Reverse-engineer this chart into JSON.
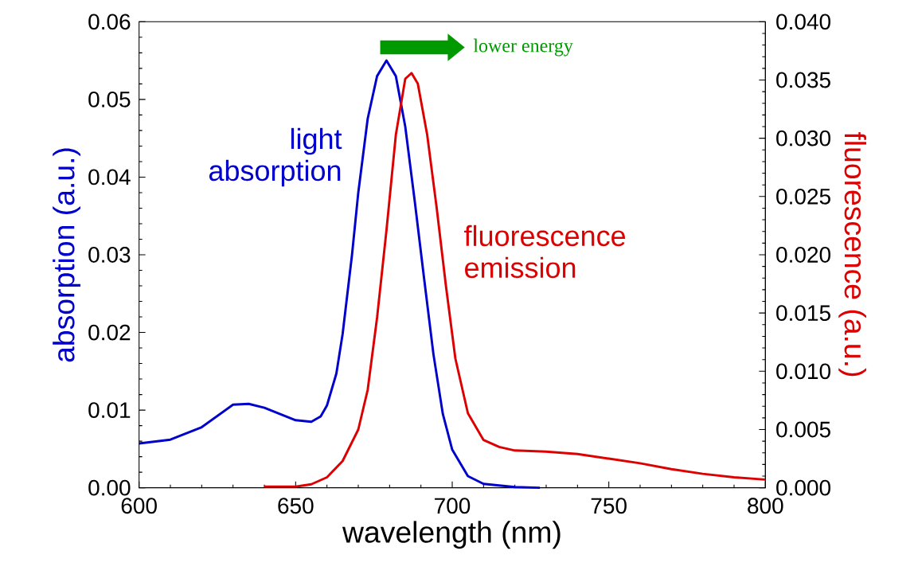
{
  "chart_data": {
    "type": "line",
    "xlabel": "wavelength (nm)",
    "ylabel": "absorption (a.u.)",
    "y2label": "fluorescence (a.u.)",
    "xlim": [
      600,
      800
    ],
    "xticks": [
      600,
      650,
      700,
      750,
      800
    ],
    "ylim": [
      0,
      0.06
    ],
    "yticks": [
      {
        "value": 0,
        "label": "0.00"
      },
      {
        "value": 0.01,
        "label": "0.01"
      },
      {
        "value": 0.02,
        "label": "0.02"
      },
      {
        "value": 0.03,
        "label": "0.03"
      },
      {
        "value": 0.04,
        "label": "0.04"
      },
      {
        "value": 0.05,
        "label": "0.05"
      },
      {
        "value": 0.06,
        "label": "0.06"
      }
    ],
    "y2lim": [
      0,
      0.04
    ],
    "y2ticks": [
      {
        "value": 0,
        "label": "0.000"
      },
      {
        "value": 0.005,
        "label": "0.005"
      },
      {
        "value": 0.01,
        "label": "0.010"
      },
      {
        "value": 0.015,
        "label": "0.015"
      },
      {
        "value": 0.02,
        "label": "0.020"
      },
      {
        "value": 0.025,
        "label": "0.025"
      },
      {
        "value": 0.03,
        "label": "0.030"
      },
      {
        "value": 0.035,
        "label": "0.035"
      },
      {
        "value": 0.04,
        "label": "0.040"
      }
    ],
    "series": [
      {
        "name": "light absorption",
        "color": "#0000cc",
        "axis": "y",
        "x": [
          600,
          610,
          620,
          630,
          635,
          640,
          645,
          650,
          655,
          658,
          660,
          663,
          665,
          668,
          670,
          673,
          676,
          679,
          682,
          685,
          688,
          691,
          694,
          697,
          700,
          705,
          710,
          720,
          728
        ],
        "values": [
          0.0057,
          0.0062,
          0.0078,
          0.0107,
          0.0108,
          0.0103,
          0.0095,
          0.0087,
          0.0085,
          0.0092,
          0.0106,
          0.0147,
          0.0198,
          0.03,
          0.038,
          0.0475,
          0.053,
          0.055,
          0.053,
          0.0465,
          0.037,
          0.027,
          0.0172,
          0.0095,
          0.0049,
          0.0015,
          0.0005,
          0.0001,
          0
        ]
      },
      {
        "name": "fluorescence emission",
        "color": "#dd0000",
        "axis": "y2",
        "x": [
          640,
          650,
          655,
          660,
          665,
          670,
          673,
          676,
          679,
          682,
          685,
          687,
          689,
          692,
          695,
          698,
          701,
          705,
          710,
          715,
          720,
          730,
          740,
          750,
          760,
          770,
          780,
          790,
          800
        ],
        "values": [
          0.0001,
          0.0001,
          0.0003,
          0.0009,
          0.0023,
          0.005,
          0.0084,
          0.0146,
          0.0221,
          0.0303,
          0.0351,
          0.0356,
          0.0347,
          0.0303,
          0.0241,
          0.0173,
          0.0111,
          0.0064,
          0.0041,
          0.0035,
          0.0032,
          0.0031,
          0.0029,
          0.0025,
          0.0021,
          0.0016,
          0.0012,
          0.0009,
          0.0007
        ]
      }
    ],
    "annotations": [
      "lower energy"
    ]
  }
}
